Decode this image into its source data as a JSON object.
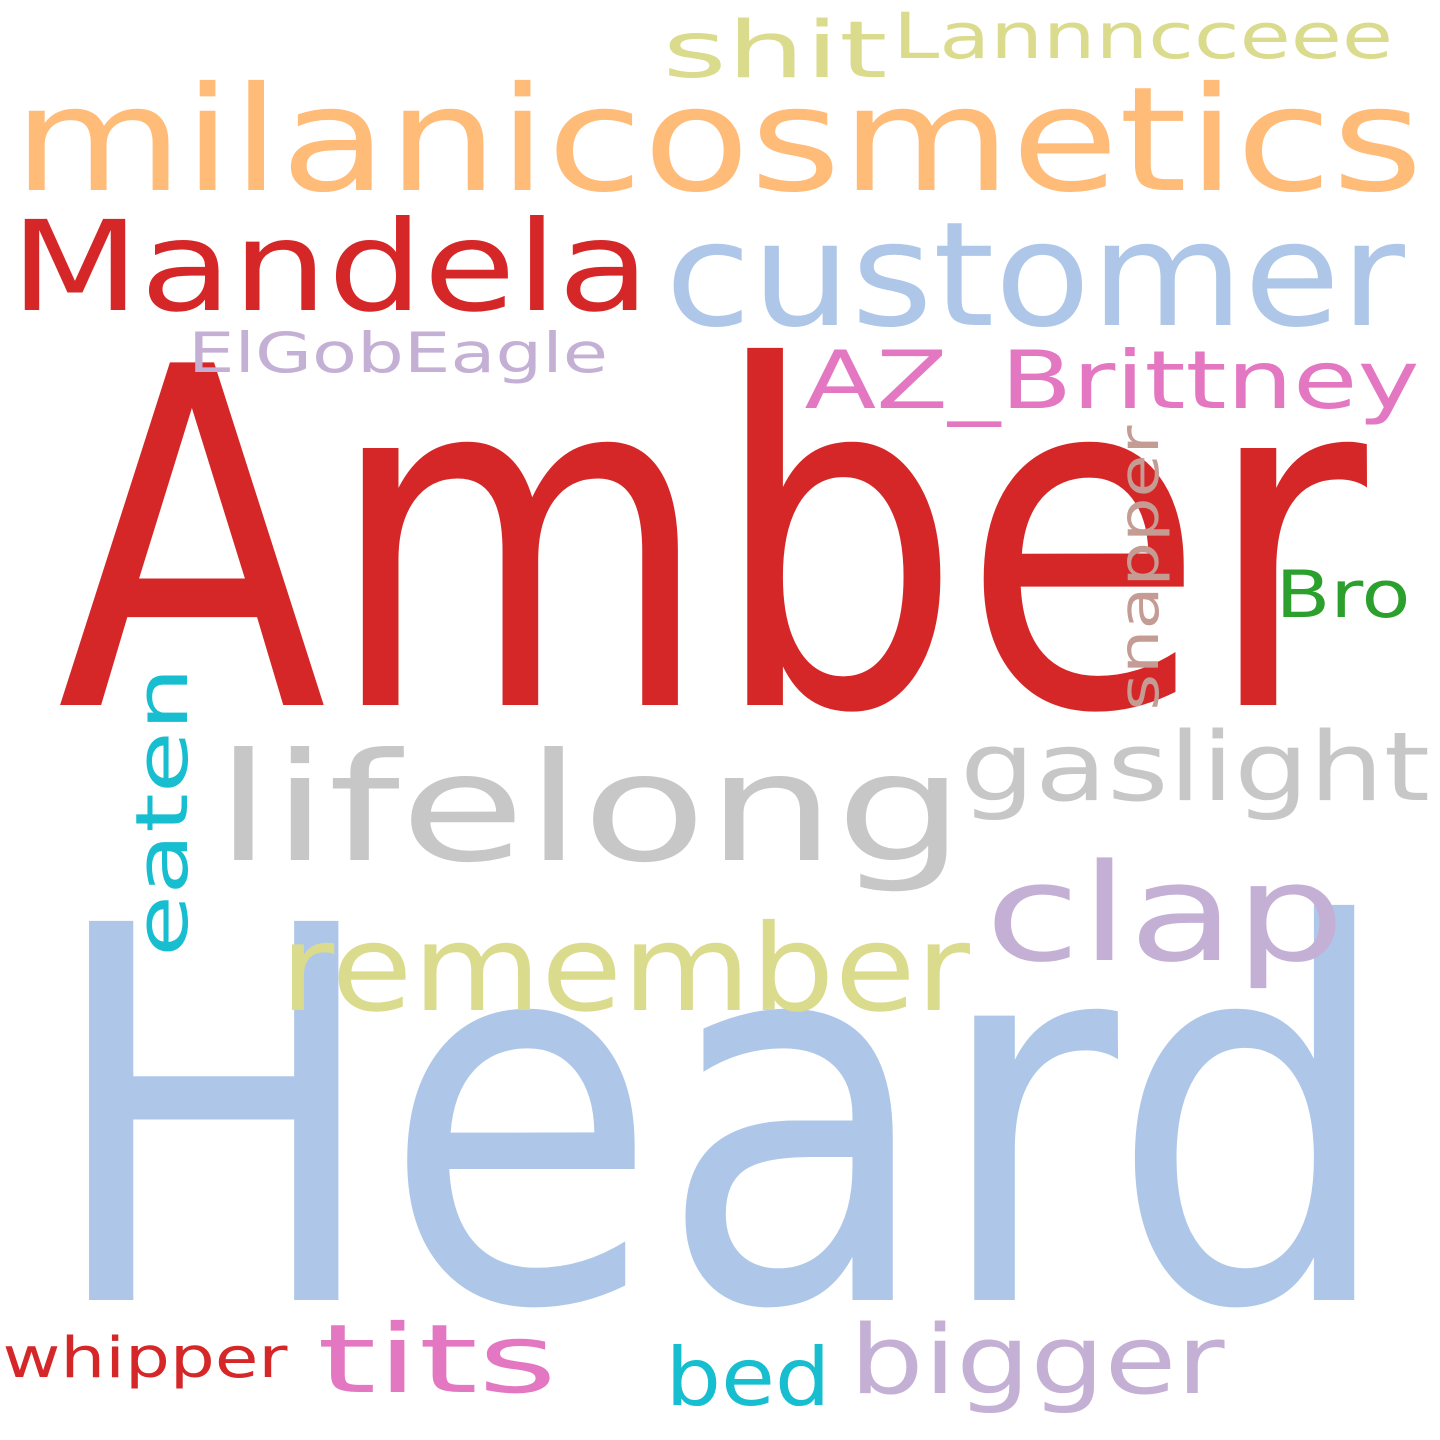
{
  "words": [
    {
      "text": "Heard",
      "color": "#aec7e8"
    },
    {
      "text": "Amber",
      "color": "#d62728"
    },
    {
      "text": "milanicosmetics",
      "color": "#ffbb78"
    },
    {
      "text": "customer",
      "color": "#aec7e8"
    },
    {
      "text": "Mandela",
      "color": "#d62728"
    },
    {
      "text": "lifelong",
      "color": "#c7c7c7"
    },
    {
      "text": "remember",
      "color": "#dbdb8d"
    },
    {
      "text": "clap",
      "color": "#c5b0d5"
    },
    {
      "text": "gaslight",
      "color": "#c7c7c7"
    },
    {
      "text": "AZ_Brittney",
      "color": "#e377c2"
    },
    {
      "text": "shit",
      "color": "#dbdb8d"
    },
    {
      "text": "Lannncceee",
      "color": "#dbdb8d"
    },
    {
      "text": "ElGobEagle",
      "color": "#c5b0d5"
    },
    {
      "text": "snapper",
      "color": "#c49c94"
    },
    {
      "text": "Bro",
      "color": "#2ca02c"
    },
    {
      "text": "eaten",
      "color": "#17becf"
    },
    {
      "text": "whipper",
      "color": "#d62728"
    },
    {
      "text": "tits",
      "color": "#e377c2"
    },
    {
      "text": "bed",
      "color": "#17becf"
    },
    {
      "text": "bigger",
      "color": "#c5b0d5"
    }
  ]
}
